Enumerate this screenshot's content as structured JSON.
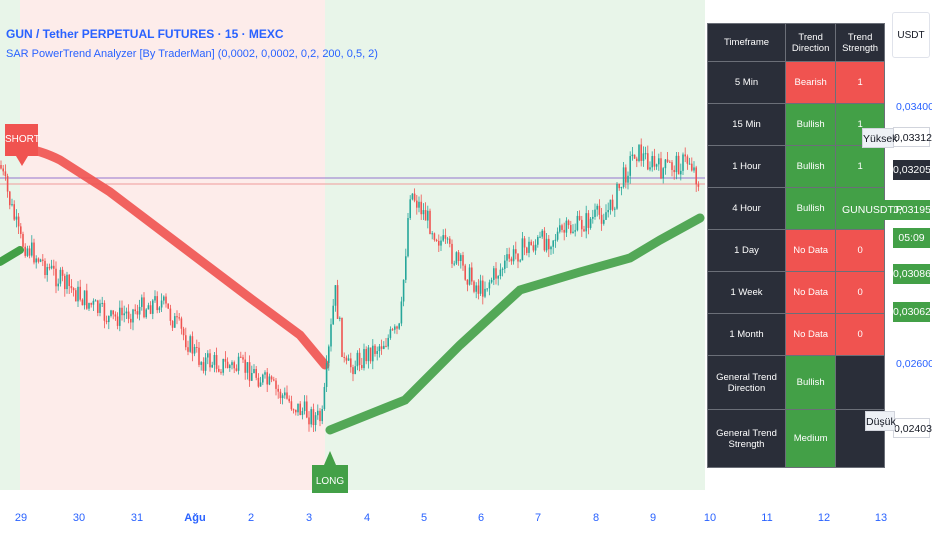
{
  "header": {
    "symbol_title": "GUN / Tether PERPETUAL FUTURES · 15 · MEXC",
    "indicator_title": "SAR PowerTrend Analyzer [By TraderMan] (0,0002, 0,0002, 0,2, 200, 0,5, 2)"
  },
  "signals": {
    "short": "SHORT",
    "long": "LONG"
  },
  "xaxis": {
    "ticks": [
      "29",
      "30",
      "31",
      "Ağu",
      "2",
      "3",
      "4",
      "5",
      "6",
      "7",
      "8",
      "9",
      "10",
      "11",
      "12",
      "13"
    ]
  },
  "table": {
    "headers": [
      "Timeframe",
      "Trend Direction",
      "Trend Strength"
    ],
    "rows": [
      {
        "timeframe": "5 Min",
        "direction": "Bearish",
        "strength": "1",
        "dir_state": "bear",
        "str_state": "bear"
      },
      {
        "timeframe": "15 Min",
        "direction": "Bullish",
        "strength": "1",
        "dir_state": "bull",
        "str_state": "bull"
      },
      {
        "timeframe": "1 Hour",
        "direction": "Bullish",
        "strength": "1",
        "dir_state": "bull",
        "str_state": "bull"
      },
      {
        "timeframe": "4 Hour",
        "direction": "Bullish",
        "strength": "",
        "dir_state": "bull",
        "str_state": "bull"
      },
      {
        "timeframe": "1 Day",
        "direction": "No Data",
        "strength": "0",
        "dir_state": "bear",
        "str_state": "bear"
      },
      {
        "timeframe": "1 Week",
        "direction": "No Data",
        "strength": "0",
        "dir_state": "bear",
        "str_state": "bear"
      },
      {
        "timeframe": "1 Month",
        "direction": "No Data",
        "strength": "0",
        "dir_state": "bear",
        "str_state": "bear"
      }
    ],
    "general_direction_label": "General Trend Direction",
    "general_direction_value": "Bullish",
    "general_strength_label": "General Trend Strength",
    "general_strength_value": "Medium"
  },
  "price_axis": {
    "currency": "USDT",
    "label_high": "Yüksek",
    "label_symbol": "GUNUSDT.P",
    "label_low": "Düşük",
    "levels": [
      "0,03400",
      "0,03312",
      "0,03205",
      "0,03195",
      "05:09",
      "0,03086",
      "0,03062",
      "0,02600",
      "0,02403"
    ]
  },
  "colors": {
    "bull": "#43a047",
    "bear": "#f05350",
    "accent": "#2962ff",
    "table_bg": "#2a2e39"
  }
}
